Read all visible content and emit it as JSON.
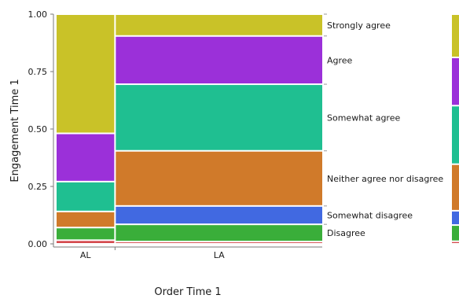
{
  "chart_data": {
    "type": "mosaic",
    "xlabel": "Order Time 1",
    "ylabel": "Engagement Time 1",
    "ylim": [
      0,
      1
    ],
    "y_ticks": [
      "0.00",
      "0.25",
      "0.50",
      "0.75",
      "1.00"
    ],
    "categories": [
      "AL",
      "LA"
    ],
    "category_widths": [
      0.22,
      0.78
    ],
    "legend_placement": "right",
    "series": [
      {
        "name": "",
        "color": "#d44a4e",
        "values": [
          0.016,
          0.01
        ]
      },
      {
        "name": "Disagree",
        "color": "#3aae3a",
        "values": [
          0.055,
          0.075
        ]
      },
      {
        "name": "Somewhat disagree",
        "color": "#4169e1",
        "values": [
          0.0,
          0.08
        ]
      },
      {
        "name": "Neither agree nor disagree",
        "color": "#d07a2a",
        "values": [
          0.07,
          0.24
        ]
      },
      {
        "name": "Somewhat agree",
        "color": "#1fbf91",
        "values": [
          0.13,
          0.29
        ]
      },
      {
        "name": "Agree",
        "color": "#9b30d9",
        "values": [
          0.21,
          0.21
        ]
      },
      {
        "name": "Strongly agree",
        "color": "#c9c228",
        "values": [
          0.519,
          0.095
        ]
      }
    ]
  }
}
